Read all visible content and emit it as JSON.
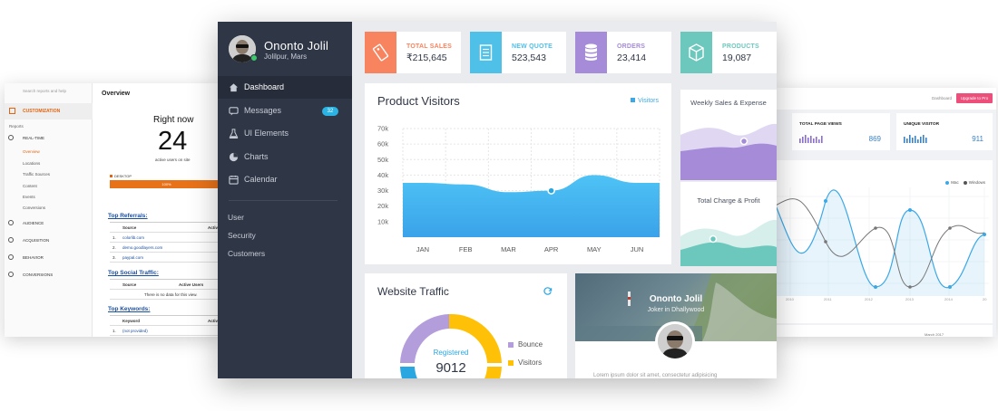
{
  "colors": {
    "sidebar": "#2f3646",
    "accent_blue": "#3ca8e6",
    "total_sales": "#f8845f",
    "new_quote": "#4fc0e8",
    "orders": "#a58bd8",
    "products": "#6cc8bd"
  },
  "left_panel": {
    "search_text": "Search reports and help",
    "customization": "CUSTOMIZATION",
    "reports": "Reports",
    "realtime": "REAL-TIME",
    "sub_items": [
      "Overview",
      "Locations",
      "Traffic Sources",
      "Content",
      "Events",
      "Conversions"
    ],
    "nav": [
      "AUDIENCE",
      "ACQUISITION",
      "BEHAVIOR",
      "CONVERSIONS"
    ],
    "overview": "Overview",
    "right_now": "Right now",
    "active_count": "24",
    "active_text": "active users on site",
    "desktop": "DESKTOP",
    "desktop_pct": "100%",
    "referrals_head": "Top Referrals:",
    "source_col": "Source",
    "active_col": "Active",
    "referrals": [
      "colorlib.com",
      "demo.goodlayers.com",
      "paypal.com"
    ],
    "social_head": "Top Social Traffic:",
    "social_source": "Source",
    "social_active": "Active Users",
    "social_empty": "There is no data for this view.",
    "keywords_head": "Top Keywords:",
    "keyword_col": "Keyword",
    "keyword_active": "Active",
    "keywords": [
      "(not provided)"
    ]
  },
  "right_panel": {
    "dashboard_link": "Dashboard",
    "upgrade": "Upgrade to Pro",
    "card1_title": "TOTAL PAGE VIEWS",
    "card1_value": "869",
    "card2_title": "UNIQUE VISITOR",
    "card2_value": "911",
    "legend_mac": "Mac",
    "legend_windows": "Windows",
    "x_ticks": [
      "2010",
      "2011",
      "2012",
      "2013",
      "2014",
      "20"
    ],
    "footer_month": "March 2017"
  },
  "profile": {
    "name": "Ononto Jolil",
    "location": "Jolilpur, Mars"
  },
  "nav": {
    "dashboard": "Dashboard",
    "messages": "Messages",
    "messages_badge": "32",
    "ui_elements": "UI Elements",
    "charts": "Charts",
    "calendar": "Calendar",
    "user": "User",
    "security": "Security",
    "customers": "Customers"
  },
  "stats": {
    "total_sales_label": "TOTAL SALES",
    "total_sales_value": "₹215,645",
    "new_quote_label": "NEW QUOTE",
    "new_quote_value": "523,543",
    "orders_label": "ORDERS",
    "orders_value": "23,414",
    "products_label": "PRODUCTS",
    "products_value": "19,087"
  },
  "product_visitors": {
    "title": "Product Visitors",
    "legend": "Visitors"
  },
  "weekly": {
    "title": "Weekly Sales & Expense"
  },
  "total_charge": {
    "title": "Total Charge & Profit"
  },
  "traffic": {
    "title": "Website Traffic",
    "center_label": "Registered",
    "center_value": "9012",
    "legend_bounce": "Bounce",
    "legend_visitors": "Visitors"
  },
  "cover": {
    "name": "Ononto Jolil",
    "role": "Joker in Dhallywood",
    "text": "Lorem ipsum dolor sit amet, consectetur adipisicing"
  },
  "chart_data": {
    "type": "area",
    "title": "Product Visitors",
    "categories": [
      "JAN",
      "FEB",
      "MAR",
      "APR",
      "MAY",
      "JUN"
    ],
    "y_ticks": [
      "10k",
      "20k",
      "30k",
      "40k",
      "50k",
      "60k",
      "70k"
    ],
    "ylim": [
      0,
      70000
    ],
    "series": [
      {
        "name": "Visitors",
        "x": [
          "JAN",
          "FEB",
          "MAR",
          "APR",
          "MAY",
          "JUN"
        ],
        "values": [
          35000,
          34000,
          29000,
          30000,
          40000,
          35000
        ]
      }
    ],
    "grid": true,
    "legend": "top-right"
  }
}
